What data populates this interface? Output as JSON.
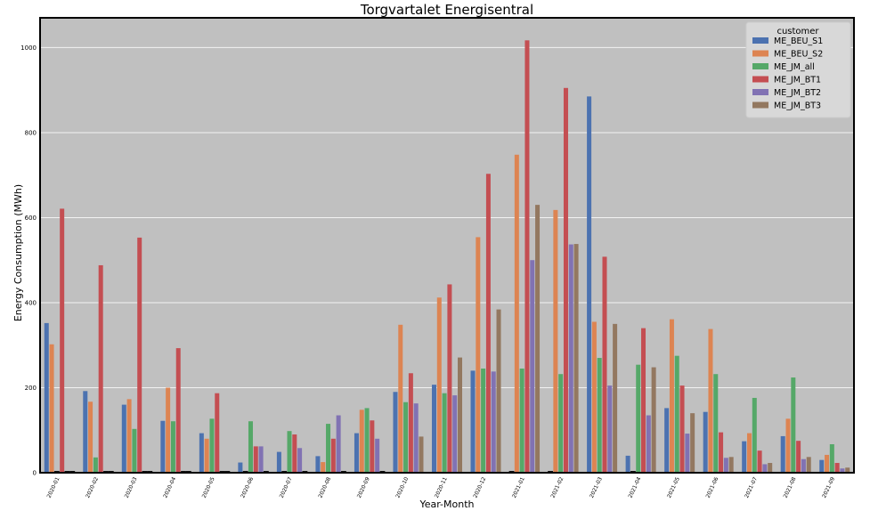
{
  "chart_data": {
    "type": "bar",
    "title": "Torgvartalet Energisentral",
    "xlabel": "Year-Month",
    "ylabel": "Energy Consumption (MWh)",
    "ylim": [
      0,
      1070
    ],
    "yticks": [
      0,
      200,
      400,
      600,
      800,
      1000
    ],
    "grid": "horizontal",
    "legend_title": "customer",
    "legend_position": "top-right",
    "categories": [
      "2020-01",
      "2020-02",
      "2020-03",
      "2020-04",
      "2020-05",
      "2020-06",
      "2020-07",
      "2020-08",
      "2020-09",
      "2020-10",
      "2020-11",
      "2020-12",
      "2021-01",
      "2021-02",
      "2021-03",
      "2021-04",
      "2021-05",
      "2021-06",
      "2021-07",
      "2021-08",
      "2021-09"
    ],
    "series": [
      {
        "name": "ME_BEU_S1",
        "color": "#4c72b0",
        "values": [
          352,
          192,
          160,
          122,
          93,
          24,
          49,
          39,
          93,
          190,
          207,
          240,
          0,
          0,
          885,
          40,
          152,
          143,
          74,
          86,
          30
        ]
      },
      {
        "name": "ME_BEU_S2",
        "color": "#dd8452",
        "values": [
          302,
          167,
          173,
          200,
          80,
          0,
          0,
          25,
          148,
          348,
          412,
          554,
          748,
          618,
          355,
          0,
          361,
          338,
          93,
          127,
          42
        ]
      },
      {
        "name": "ME_JM_all",
        "color": "#55a868",
        "values": [
          0,
          36,
          103,
          121,
          127,
          121,
          98,
          115,
          152,
          166,
          187,
          245,
          245,
          232,
          270,
          254,
          275,
          232,
          176,
          224,
          67
        ]
      },
      {
        "name": "ME_JM_BT1",
        "color": "#c44e52",
        "values": [
          621,
          488,
          553,
          293,
          187,
          62,
          90,
          80,
          123,
          234,
          443,
          703,
          1017,
          905,
          508,
          340,
          205,
          95,
          52,
          75,
          23
        ]
      },
      {
        "name": "ME_JM_BT2",
        "color": "#8172b3",
        "values": [
          0,
          0,
          0,
          0,
          0,
          62,
          58,
          135,
          80,
          163,
          182,
          238,
          500,
          537,
          205,
          135,
          92,
          35,
          20,
          32,
          10
        ]
      },
      {
        "name": "ME_JM_BT3",
        "color": "#937860",
        "values": [
          0,
          0,
          0,
          0,
          0,
          0,
          0,
          0,
          0,
          85,
          271,
          384,
          630,
          538,
          350,
          248,
          140,
          37,
          23,
          37,
          12
        ]
      }
    ]
  }
}
